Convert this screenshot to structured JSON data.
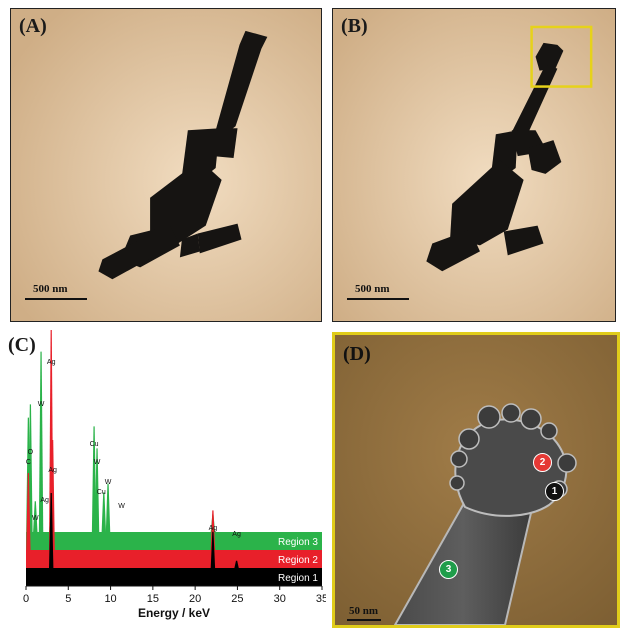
{
  "panels": {
    "a": {
      "label": "(A)",
      "scale": "500 nm"
    },
    "b": {
      "label": "(B)",
      "scale": "500 nm"
    },
    "c": {
      "label": "(C)"
    },
    "d": {
      "label": "(D)",
      "scale": "50 nm"
    }
  },
  "markers": [
    {
      "text": "1",
      "color": "#111111"
    },
    {
      "text": "2",
      "color": "#e53935"
    },
    {
      "text": "3",
      "color": "#1f9d4a"
    }
  ],
  "colors": {
    "region1": "#000000",
    "region2": "#e8202a",
    "region3": "#2bb34a",
    "highlight": "#e6d21a"
  },
  "chart_data": {
    "type": "area",
    "xlabel": "Energy / keV",
    "ylabel": "",
    "xlim": [
      0,
      35
    ],
    "xticks": [
      0,
      5,
      10,
      15,
      20,
      25,
      30,
      35
    ],
    "grid": false,
    "series": [
      {
        "name": "Region 1",
        "color": "#000000",
        "peaks": [
          {
            "x": 2.98,
            "h": 0.62
          },
          {
            "x": 22.1,
            "h": 0.3
          },
          {
            "x": 24.9,
            "h": 0.06
          }
        ]
      },
      {
        "name": "Region 2",
        "color": "#e8202a",
        "peaks": [
          {
            "x": 2.98,
            "h": 1.0
          },
          {
            "x": 3.15,
            "h": 0.5
          },
          {
            "x": 0.28,
            "h": 0.35
          },
          {
            "x": 22.1,
            "h": 0.18
          }
        ]
      },
      {
        "name": "Region 3",
        "color": "#2bb34a",
        "peaks": [
          {
            "x": 1.78,
            "h": 0.82
          },
          {
            "x": 0.28,
            "h": 0.52
          },
          {
            "x": 0.52,
            "h": 0.58
          },
          {
            "x": 8.05,
            "h": 0.48
          },
          {
            "x": 8.4,
            "h": 0.38
          },
          {
            "x": 9.2,
            "h": 0.18
          },
          {
            "x": 9.7,
            "h": 0.22
          },
          {
            "x": 2.98,
            "h": 0.1
          },
          {
            "x": 1.1,
            "h": 0.14
          },
          {
            "x": 22.1,
            "h": 0.08
          }
        ]
      }
    ],
    "annotations": [
      {
        "text": "Ag",
        "x": 2.98
      },
      {
        "text": "W",
        "x": 1.78
      },
      {
        "text": "O",
        "x": 0.52
      },
      {
        "text": "C",
        "x": 0.28
      },
      {
        "text": "Ag",
        "x": 3.15
      },
      {
        "text": "Ag",
        "x": 2.2
      },
      {
        "text": "W",
        "x": 1.1
      },
      {
        "text": "Cu",
        "x": 8.05
      },
      {
        "text": "W",
        "x": 8.4
      },
      {
        "text": "Cu",
        "x": 8.9
      },
      {
        "text": "W",
        "x": 9.7
      },
      {
        "text": "W",
        "x": 11.3
      },
      {
        "text": "Ag",
        "x": 22.1
      },
      {
        "text": "Ag",
        "x": 24.9
      }
    ]
  }
}
